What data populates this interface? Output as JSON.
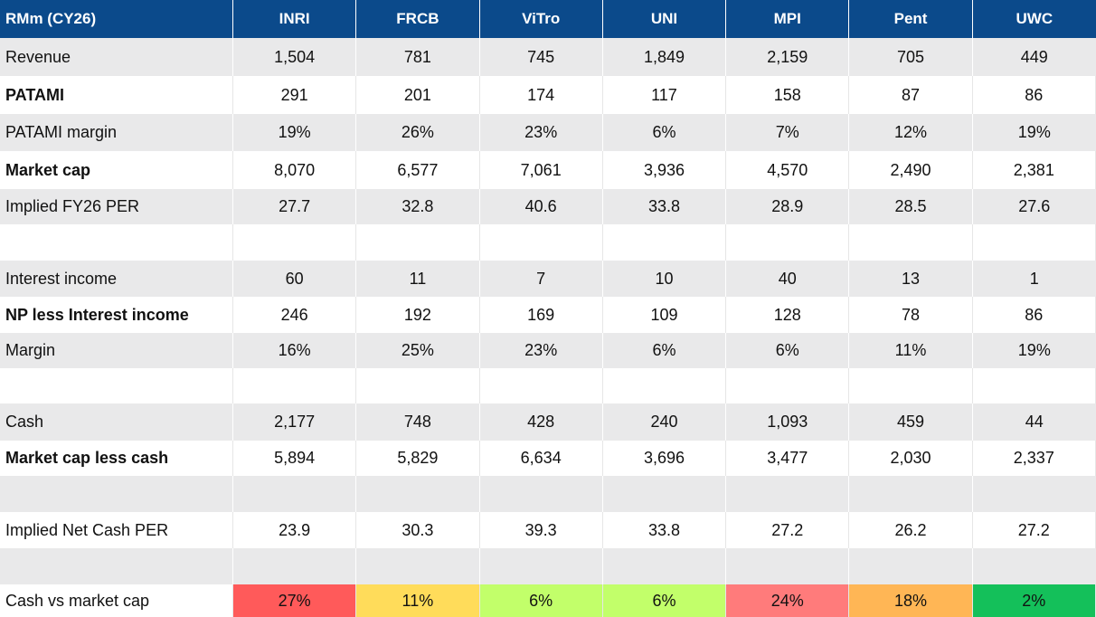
{
  "header": [
    "RMm (CY26)",
    "INRI",
    "FRCB",
    "ViTro",
    "UNI",
    "MPI",
    "Pent",
    "UWC"
  ],
  "rows": [
    {
      "label": "Revenue",
      "bold": false,
      "values": [
        "1,504",
        "781",
        "745",
        "1,849",
        "2,159",
        "705",
        "449"
      ]
    },
    {
      "label": "PATAMI",
      "bold": true,
      "values": [
        "291",
        "201",
        "174",
        "117",
        "158",
        "87",
        "86"
      ]
    },
    {
      "label": "PATAMI margin",
      "bold": false,
      "values": [
        "19%",
        "26%",
        "23%",
        "6%",
        "7%",
        "12%",
        "19%"
      ]
    },
    {
      "label": "Market cap",
      "bold": true,
      "values": [
        "8,070",
        "6,577",
        "7,061",
        "3,936",
        "4,570",
        "2,490",
        "2,381"
      ]
    },
    {
      "label": "Implied FY26 PER",
      "bold": false,
      "values": [
        "27.7",
        "32.8",
        "40.6",
        "33.8",
        "28.9",
        "28.5",
        "27.6"
      ]
    },
    {
      "label": "",
      "bold": false,
      "values": [
        "",
        "",
        "",
        "",
        "",
        "",
        ""
      ]
    },
    {
      "label": "Interest income",
      "bold": false,
      "values": [
        "60",
        "11",
        "7",
        "10",
        "40",
        "13",
        "1"
      ]
    },
    {
      "label": "NP less Interest income",
      "bold": true,
      "values": [
        "246",
        "192",
        "169",
        "109",
        "128",
        "78",
        "86"
      ]
    },
    {
      "label": "Margin",
      "bold": false,
      "values": [
        "16%",
        "25%",
        "23%",
        "6%",
        "6%",
        "11%",
        "19%"
      ]
    },
    {
      "label": "",
      "bold": false,
      "values": [
        "",
        "",
        "",
        "",
        "",
        "",
        ""
      ]
    },
    {
      "label": "Cash",
      "bold": false,
      "values": [
        "2,177",
        "748",
        "428",
        "240",
        "1,093",
        "459",
        "44"
      ]
    },
    {
      "label": "Market cap less cash",
      "bold": true,
      "values": [
        "5,894",
        "5,829",
        "6,634",
        "3,696",
        "3,477",
        "2,030",
        "2,337"
      ]
    },
    {
      "label": "",
      "bold": false,
      "values": [
        "",
        "",
        "",
        "",
        "",
        "",
        ""
      ]
    },
    {
      "label": "Implied Net Cash PER",
      "bold": false,
      "values": [
        "23.9",
        "30.3",
        "39.3",
        "33.8",
        "27.2",
        "26.2",
        "27.2"
      ]
    },
    {
      "label": "",
      "bold": false,
      "values": [
        "",
        "",
        "",
        "",
        "",
        "",
        ""
      ]
    },
    {
      "label": "Cash vs market cap",
      "bold": false,
      "values": [
        "27%",
        "11%",
        "6%",
        "6%",
        "24%",
        "18%",
        "2%"
      ],
      "colors": [
        "#ff5a5a",
        "#ffdc5a",
        "#c2ff6a",
        "#c2ff6a",
        "#ff7b7b",
        "#ffb655",
        "#14c05a"
      ]
    }
  ]
}
